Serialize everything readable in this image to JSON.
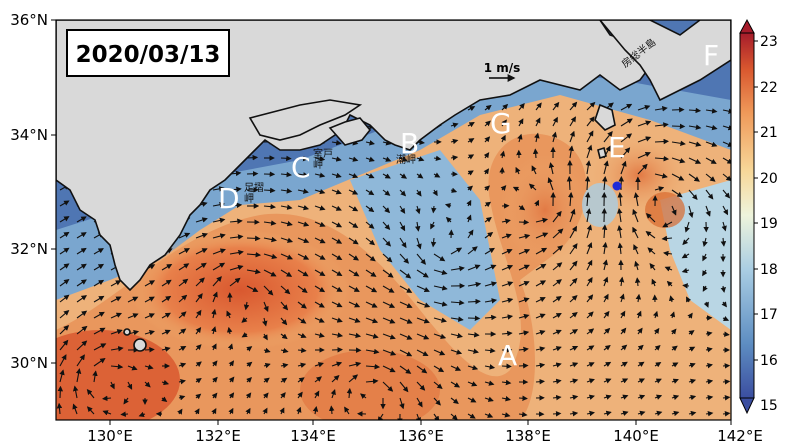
{
  "date_label": "2020/03/13",
  "axes": {
    "lon_ticks": [
      "130°E",
      "132°E",
      "134°E",
      "136°E",
      "138°E",
      "140°E",
      "142°E"
    ],
    "lat_ticks": [
      "36°N",
      "34°N",
      "32°N",
      "30°N"
    ]
  },
  "colorbar": {
    "ticks": [
      "23",
      "22",
      "21",
      "20",
      "19",
      "18",
      "17",
      "16",
      "15"
    ],
    "range": [
      15,
      23
    ],
    "colors": [
      "#3b4ea0",
      "#5e8ec2",
      "#a9cde3",
      "#eef4dc",
      "#f7d89a",
      "#ef9a5a",
      "#d9582f",
      "#a61c2b"
    ]
  },
  "scale_arrow": {
    "label": "1 m/s"
  },
  "points": [
    {
      "id": "A",
      "label": "A"
    },
    {
      "id": "B",
      "label": "B"
    },
    {
      "id": "C",
      "label": "C"
    },
    {
      "id": "D",
      "label": "D"
    },
    {
      "id": "E",
      "label": "E"
    },
    {
      "id": "F",
      "label": "F"
    },
    {
      "id": "G",
      "label": "G"
    }
  ],
  "place_names": [
    {
      "id": "muroto",
      "label": "室戸\n岬"
    },
    {
      "id": "shiono",
      "label": "潮岬"
    },
    {
      "id": "ashizuri",
      "label": "足摺\n岬"
    },
    {
      "id": "boso",
      "label": "房総半島"
    }
  ],
  "station_marker": {
    "color": "#1f2bd8"
  },
  "land_color": "#d9d9d9"
}
